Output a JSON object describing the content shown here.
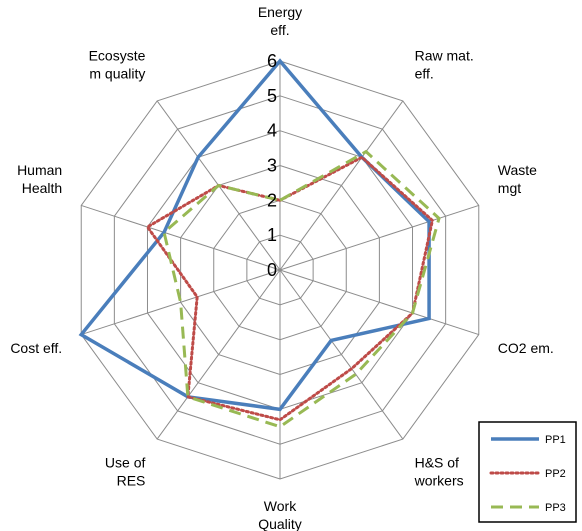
{
  "chart_data": {
    "type": "radar",
    "axes": [
      [
        "Energy",
        "eff."
      ],
      [
        "Raw mat.",
        "eff."
      ],
      [
        "Waste",
        "mgt"
      ],
      [
        "CO2 em."
      ],
      [
        "H&S of",
        "workers"
      ],
      [
        "Work",
        "Quality"
      ],
      [
        "Use of",
        "RES"
      ],
      [
        "Cost eff."
      ],
      [
        "Human",
        "Health"
      ],
      [
        "Ecosyste",
        "m quality"
      ]
    ],
    "rlim": [
      0,
      6
    ],
    "ticks": [
      "0",
      "1",
      "2",
      "3",
      "4",
      "5",
      "6"
    ],
    "grid": true,
    "legend_position": "bottom-right",
    "series": [
      {
        "name": "PP1",
        "color": "#4A7EBB",
        "style": "solid",
        "values": [
          6,
          4,
          4.5,
          4.5,
          2.5,
          4,
          4.5,
          6,
          3.5,
          4
        ]
      },
      {
        "name": "PP2",
        "color": "#BE4B48",
        "style": "dotted",
        "values": [
          2,
          4,
          4.6,
          4,
          3.5,
          4.3,
          4.5,
          2.5,
          4,
          3
        ]
      },
      {
        "name": "PP3",
        "color": "#98B954",
        "style": "dashed",
        "values": [
          2,
          4.2,
          4.8,
          4,
          3.7,
          4.5,
          4.5,
          3,
          3.5,
          3
        ]
      }
    ]
  }
}
